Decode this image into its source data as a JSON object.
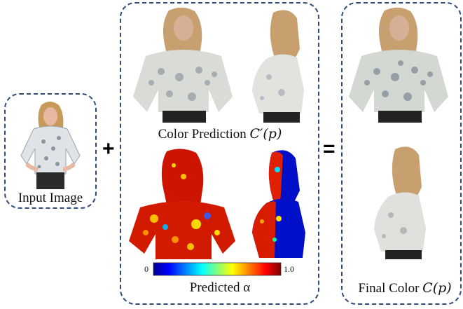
{
  "labels": {
    "input_image": "Input Image",
    "color_prediction_prefix": "Color Prediction ",
    "color_prediction_math": "C′(p)",
    "predicted_alpha": "Predicted α",
    "final_color_prefix": "Final Color ",
    "final_color_math": "C(p)"
  },
  "operators": {
    "plus": "+",
    "equals": "="
  },
  "colorbar": {
    "min_label": "0",
    "max_label": "1.0"
  },
  "colors": {
    "box_border": "#2f4a78",
    "colorbar_stops": [
      "#00008f",
      "#0000ff",
      "#00ffff",
      "#ffff00",
      "#ff0000",
      "#800000"
    ]
  }
}
